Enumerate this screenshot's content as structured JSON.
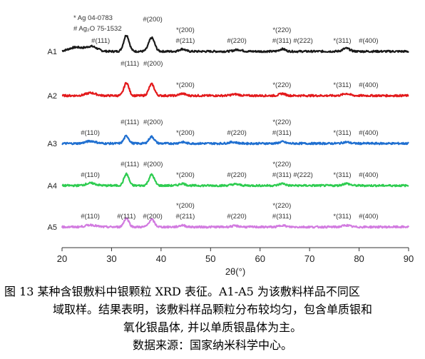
{
  "chart_data": {
    "type": "line",
    "xlabel": "2θ(°)",
    "xlim": [
      20,
      90
    ],
    "xticks": [
      20,
      30,
      40,
      50,
      60,
      70,
      80,
      90
    ],
    "legend": [
      "* Ag 04-0783",
      "# Ag₂O 75-1532"
    ],
    "series": [
      {
        "name": "A1",
        "color": "#1a1a1a",
        "peaks": [
          {
            "x": 22.8,
            "h": 0.6,
            "w": 1.4
          },
          {
            "x": 26.0,
            "h": 0.7,
            "w": 1.1
          },
          {
            "x": 33.0,
            "h": 2.4,
            "w": 0.55
          },
          {
            "x": 38.1,
            "h": 2.0,
            "w": 0.6
          },
          {
            "x": 44.3,
            "h": 0.35,
            "w": 0.6
          },
          {
            "x": 55.5,
            "h": 0.25,
            "w": 0.8
          },
          {
            "x": 64.5,
            "h": 0.35,
            "w": 0.6
          },
          {
            "x": 77.4,
            "h": 0.45,
            "w": 0.7
          }
        ]
      },
      {
        "name": "A2",
        "color": "#e31a1c",
        "peaks": [
          {
            "x": 25.8,
            "h": 0.4,
            "w": 1.0
          },
          {
            "x": 33.0,
            "h": 1.9,
            "w": 0.5
          },
          {
            "x": 38.1,
            "h": 1.7,
            "w": 0.55
          },
          {
            "x": 44.3,
            "h": 0.3,
            "w": 0.6
          },
          {
            "x": 55.0,
            "h": 0.2,
            "w": 0.8
          },
          {
            "x": 64.5,
            "h": 0.3,
            "w": 0.6
          },
          {
            "x": 77.4,
            "h": 0.3,
            "w": 0.7
          }
        ]
      },
      {
        "name": "A3",
        "color": "#1f6fd0",
        "peaks": [
          {
            "x": 25.8,
            "h": 0.35,
            "w": 1.0
          },
          {
            "x": 33.0,
            "h": 1.1,
            "w": 0.5
          },
          {
            "x": 38.1,
            "h": 1.0,
            "w": 0.55
          },
          {
            "x": 44.3,
            "h": 0.2,
            "w": 0.6
          },
          {
            "x": 54.5,
            "h": 0.2,
            "w": 0.8
          },
          {
            "x": 64.5,
            "h": 0.25,
            "w": 0.6
          },
          {
            "x": 77.4,
            "h": 0.2,
            "w": 0.7
          }
        ]
      },
      {
        "name": "A4",
        "color": "#2ecc50",
        "peaks": [
          {
            "x": 25.8,
            "h": 0.35,
            "w": 1.0
          },
          {
            "x": 33.0,
            "h": 1.7,
            "w": 0.5
          },
          {
            "x": 38.1,
            "h": 1.6,
            "w": 0.55
          },
          {
            "x": 44.3,
            "h": 0.3,
            "w": 0.6
          },
          {
            "x": 55.0,
            "h": 0.2,
            "w": 0.8
          },
          {
            "x": 64.5,
            "h": 0.3,
            "w": 0.6
          },
          {
            "x": 77.4,
            "h": 0.3,
            "w": 0.7
          }
        ]
      },
      {
        "name": "A5",
        "color": "#d27be0",
        "peaks": [
          {
            "x": 25.8,
            "h": 0.3,
            "w": 1.0
          },
          {
            "x": 33.0,
            "h": 1.3,
            "w": 0.5
          },
          {
            "x": 38.1,
            "h": 1.1,
            "w": 0.55
          },
          {
            "x": 44.3,
            "h": 0.25,
            "w": 0.6
          },
          {
            "x": 55.0,
            "h": 0.15,
            "w": 0.8
          },
          {
            "x": 64.5,
            "h": 0.25,
            "w": 0.6
          },
          {
            "x": 77.4,
            "h": 0.25,
            "w": 0.7
          }
        ]
      }
    ],
    "annotations": [
      {
        "series": "A1",
        "items": [
          {
            "text": "#(111)",
            "x": 27.8,
            "level": 1
          },
          {
            "text": "#(200)",
            "x": 38.3,
            "level": 3
          },
          {
            "text": "*(200)",
            "x": 44.9,
            "level": 2
          },
          {
            "text": "#(211)",
            "x": 44.9,
            "level": 1
          },
          {
            "text": "#(220)",
            "x": 55.3,
            "level": 1
          },
          {
            "text": "*(220)",
            "x": 64.4,
            "level": 2
          },
          {
            "text": "#(311)",
            "x": 64.4,
            "level": 1
          },
          {
            "text": "#(222)",
            "x": 68.7,
            "level": 1
          },
          {
            "text": "*(311)",
            "x": 76.6,
            "level": 1
          },
          {
            "text": "#(400)",
            "x": 81.9,
            "level": 1
          }
        ]
      },
      {
        "series": "A2",
        "items": [
          {
            "text": "#(111)",
            "x": 33.7,
            "level": 3
          },
          {
            "text": "#(200)",
            "x": 38.4,
            "level": 3
          },
          {
            "text": "*(200)",
            "x": 44.9,
            "level": 1
          },
          {
            "text": "*(220)",
            "x": 64.4,
            "level": 1
          },
          {
            "text": "*(311)",
            "x": 76.6,
            "level": 1
          },
          {
            "text": "#(400)",
            "x": 81.9,
            "level": 1
          }
        ]
      },
      {
        "series": "A3",
        "items": [
          {
            "text": "#(110)",
            "x": 25.7,
            "level": 1
          },
          {
            "text": "#(111)",
            "x": 33.7,
            "level": 2
          },
          {
            "text": "#(200)",
            "x": 38.4,
            "level": 2
          },
          {
            "text": "*(200)",
            "x": 44.9,
            "level": 1
          },
          {
            "text": "#(220)",
            "x": 55.3,
            "level": 1
          },
          {
            "text": "*(220)",
            "x": 64.4,
            "level": 2
          },
          {
            "text": "#(311)",
            "x": 64.4,
            "level": 1
          },
          {
            "text": "*(311)",
            "x": 76.6,
            "level": 1
          },
          {
            "text": "#(400)",
            "x": 81.9,
            "level": 1
          }
        ]
      },
      {
        "series": "A4",
        "items": [
          {
            "text": "#(110)",
            "x": 25.7,
            "level": 1
          },
          {
            "text": "#(111)",
            "x": 33.7,
            "level": 2
          },
          {
            "text": "#(200)",
            "x": 38.4,
            "level": 2
          },
          {
            "text": "*(200)",
            "x": 44.9,
            "level": 1
          },
          {
            "text": "#(220)",
            "x": 55.3,
            "level": 1
          },
          {
            "text": "*(220)",
            "x": 64.4,
            "level": 2
          },
          {
            "text": "#(311)",
            "x": 64.4,
            "level": 1
          },
          {
            "text": "#(222)",
            "x": 68.7,
            "level": 1
          },
          {
            "text": "*(311)",
            "x": 76.6,
            "level": 1
          },
          {
            "text": "#(400)",
            "x": 81.9,
            "level": 1
          }
        ]
      },
      {
        "series": "A5",
        "items": [
          {
            "text": "#(110)",
            "x": 25.7,
            "level": 1
          },
          {
            "text": "#(111)",
            "x": 33.0,
            "level": 1
          },
          {
            "text": "#(200)",
            "x": 38.3,
            "level": 1
          },
          {
            "text": "*(200)",
            "x": 44.9,
            "level": 2
          },
          {
            "text": "#(211)",
            "x": 44.9,
            "level": 1
          },
          {
            "text": "#(220)",
            "x": 55.3,
            "level": 1
          },
          {
            "text": "*(220)",
            "x": 64.4,
            "level": 2
          },
          {
            "text": "#(311)",
            "x": 64.4,
            "level": 1
          },
          {
            "text": "*(311)",
            "x": 76.6,
            "level": 1
          },
          {
            "text": "#(400)",
            "x": 81.9,
            "level": 1
          }
        ]
      }
    ]
  },
  "caption": {
    "line1": "图 13 某种含银敷料中银颗粒 XRD 表征。A1-A5 为该敷料样品不同区",
    "line2": "域取样。结果表明，该敷料样品颗粒分布较均匀，包含单质银和",
    "line3": "氧化银晶体, 并以单质银晶体为主。",
    "line4": "数据来源：国家纳米科学中心。"
  }
}
